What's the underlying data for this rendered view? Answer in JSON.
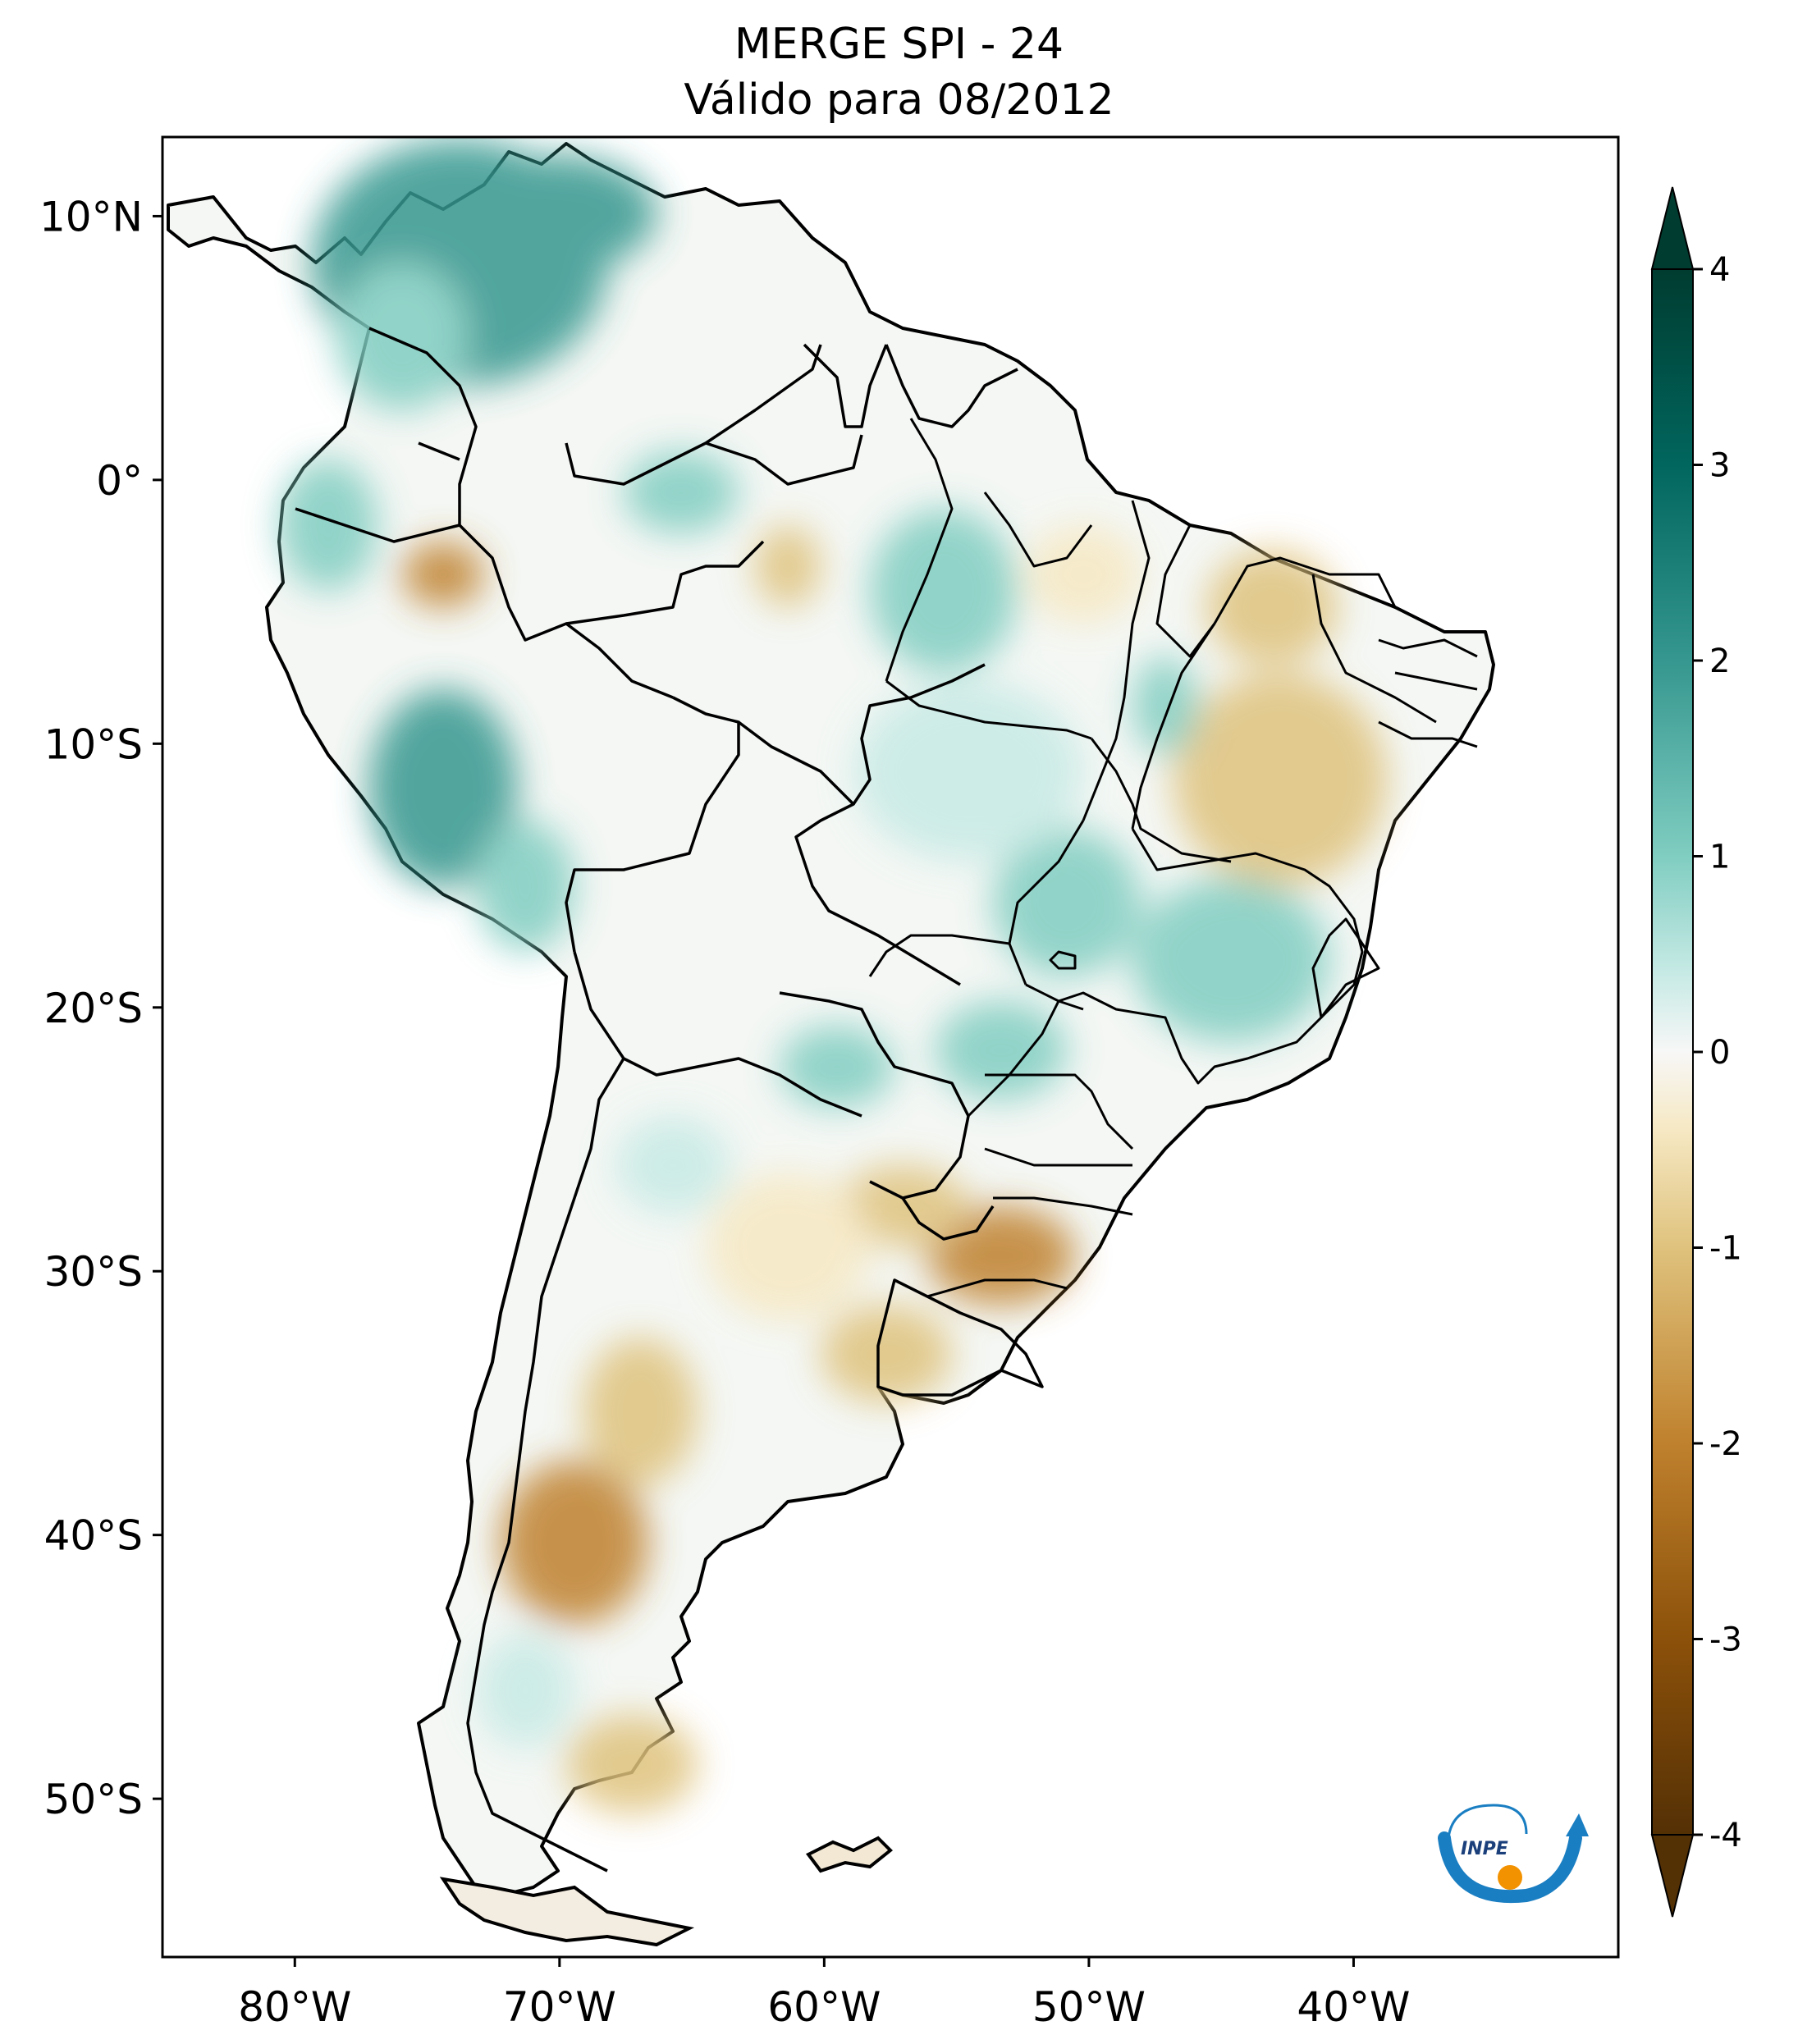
{
  "header": {
    "title_line1": "MERGE   SPI - 24",
    "title_line2": "Válido para 08/2012"
  },
  "map": {
    "lon_range": [
      -85,
      -30
    ],
    "lat_range": [
      -56,
      13
    ],
    "x_ticks": [
      {
        "lon": -80,
        "label": "80°W"
      },
      {
        "lon": -70,
        "label": "70°W"
      },
      {
        "lon": -60,
        "label": "60°W"
      },
      {
        "lon": -50,
        "label": "50°W"
      },
      {
        "lon": -40,
        "label": "40°W"
      }
    ],
    "y_ticks": [
      {
        "lat": 10,
        "label": "10°N"
      },
      {
        "lat": 0,
        "label": "0°"
      },
      {
        "lat": -10,
        "label": "10°S"
      },
      {
        "lat": -20,
        "label": "20°S"
      },
      {
        "lat": -30,
        "label": "30°S"
      },
      {
        "lat": -40,
        "label": "40°S"
      },
      {
        "lat": -50,
        "label": "50°S"
      }
    ],
    "wet_regions": [
      "Colombia / Venezuela",
      "Ecuador",
      "Peru",
      "Central Brazil",
      "Minas Gerais",
      "Paraguay"
    ],
    "dry_regions": [
      "Rio Grande do Sul / Uruguay",
      "NE Argentina",
      "Bahia",
      "Patagonia"
    ]
  },
  "colorbar": {
    "min": -4,
    "max": 4,
    "extend": "both",
    "ticks": [
      {
        "value": 4,
        "label": "4"
      },
      {
        "value": 3,
        "label": "3"
      },
      {
        "value": 2,
        "label": "2"
      },
      {
        "value": 1,
        "label": "1"
      },
      {
        "value": 0,
        "label": "0"
      },
      {
        "value": -1,
        "label": "-1"
      },
      {
        "value": -2,
        "label": "-2"
      },
      {
        "value": -3,
        "label": "-3"
      },
      {
        "value": -4,
        "label": "-4"
      }
    ],
    "colors": [
      "#543005",
      "#8c510a",
      "#bf812d",
      "#dfc27d",
      "#f6e8c3",
      "#f5f5f5",
      "#c7eae5",
      "#80cdc1",
      "#35978f",
      "#01665e",
      "#003c30"
    ]
  },
  "logo": {
    "text": "INPE",
    "arc_color": "#1a7ec2",
    "dot_color": "#f39200"
  }
}
